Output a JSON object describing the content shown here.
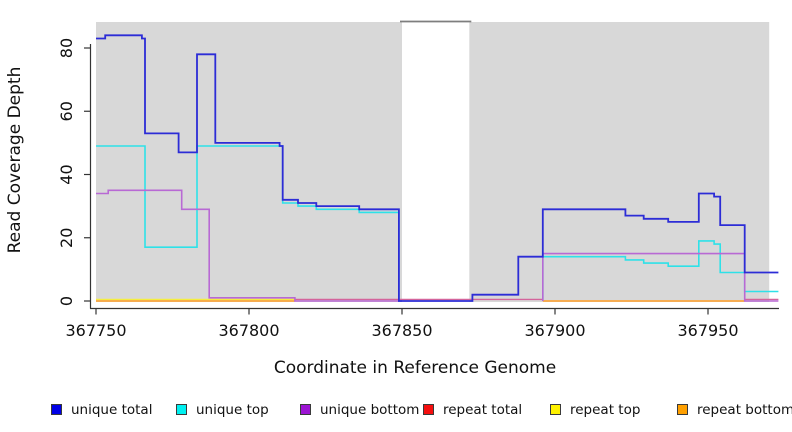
{
  "chart_data": {
    "type": "line",
    "subtype": "step-coverage",
    "title": "",
    "xlabel": "Coordinate in Reference Genome",
    "ylabel": "Read Coverage Depth",
    "xlim": [
      367750,
      367973
    ],
    "ylim": [
      0,
      88
    ],
    "grid": false,
    "legend_position": "bottom",
    "background_color": "#d8d8d8",
    "gap_top_line_color": "#7e7e7e",
    "axis_color": "#333333",
    "tick_text_color": "#111111",
    "x_axis": {
      "ticks": [
        367750,
        367800,
        367850,
        367900,
        367950
      ]
    },
    "y_axis": {
      "ticks": [
        0,
        20,
        40,
        60,
        80
      ]
    },
    "background_regions": [
      {
        "x": [
          367750,
          367850
        ]
      },
      {
        "x": [
          367872,
          367970
        ]
      }
    ],
    "gap_region": {
      "x": [
        367850,
        367872
      ]
    },
    "draw_order": [
      4,
      5,
      3,
      1,
      2,
      0
    ],
    "series": [
      {
        "name": "unique total",
        "legend_color": "#0000e6",
        "plot_color": "#2c2cd6",
        "line_width": 1.8,
        "segments": [
          [
            [
              367750,
              83
            ],
            [
              367753,
              84
            ],
            [
              367765,
              83
            ],
            [
              367766,
              53
            ],
            [
              367777,
              47
            ],
            [
              367783,
              78
            ],
            [
              367789,
              50
            ],
            [
              367810,
              49
            ],
            [
              367811,
              32
            ],
            [
              367816,
              31
            ],
            [
              367822,
              30
            ],
            [
              367836,
              29
            ],
            [
              367849,
              0
            ],
            [
              367873,
              0
            ],
            [
              367873,
              2
            ],
            [
              367888,
              14
            ],
            [
              367896,
              29
            ],
            [
              367923,
              27
            ],
            [
              367929,
              26
            ],
            [
              367937,
              25
            ],
            [
              367947,
              34
            ],
            [
              367952,
              33
            ],
            [
              367954,
              24
            ],
            [
              367962,
              9
            ],
            [
              367973,
              9
            ]
          ]
        ]
      },
      {
        "name": "unique top",
        "legend_color": "#00f0f0",
        "plot_color": "#2ee1e8",
        "line_width": 1.6,
        "segments": [
          [
            [
              367750,
              49
            ],
            [
              367766,
              17
            ],
            [
              367783,
              49
            ],
            [
              367811,
              31
            ],
            [
              367816,
              30
            ],
            [
              367822,
              29
            ],
            [
              367836,
              28
            ],
            [
              367849,
              0
            ],
            [
              367850,
              0
            ]
          ],
          [
            [
              367896,
              0
            ],
            [
              367896,
              14
            ],
            [
              367923,
              13
            ],
            [
              367929,
              12
            ],
            [
              367937,
              11
            ],
            [
              367947,
              19
            ],
            [
              367952,
              18
            ],
            [
              367954,
              9
            ],
            [
              367962,
              3
            ],
            [
              367973,
              3
            ]
          ]
        ]
      },
      {
        "name": "unique bottom",
        "legend_color": "#9c14d3",
        "plot_color": "#b869d4",
        "line_width": 1.6,
        "segments": [
          [
            [
              367750,
              34
            ],
            [
              367754,
              35
            ],
            [
              367778,
              29
            ],
            [
              367787,
              1
            ],
            [
              367815,
              0
            ],
            [
              367850,
              0
            ]
          ],
          [
            [
              367896,
              0
            ],
            [
              367896,
              15
            ],
            [
              367962,
              15
            ],
            [
              367962,
              0
            ],
            [
              367973,
              0
            ]
          ]
        ]
      },
      {
        "name": "repeat total",
        "legend_color": "#f50f0f",
        "plot_color": "#d4649b",
        "line_width": 1.4,
        "segments": [
          [
            [
              367815,
              0.5
            ],
            [
              367896,
              0.5
            ]
          ],
          [
            [
              367962,
              0.5
            ],
            [
              367973,
              0.5
            ]
          ]
        ]
      },
      {
        "name": "repeat top",
        "legend_color": "#fff200",
        "plot_color": "#f5ee3f",
        "line_width": 1.4,
        "segments": [
          [
            [
              367750,
              0.5
            ],
            [
              367815,
              0.5
            ]
          ]
        ]
      },
      {
        "name": "repeat bottom",
        "legend_color": "#ffa000",
        "plot_color": "#ff9d26",
        "line_width": 1.6,
        "segments": [
          [
            [
              367750,
              0
            ],
            [
              367815,
              0
            ]
          ],
          [
            [
              367896,
              0
            ],
            [
              367962,
              0
            ]
          ]
        ]
      }
    ]
  }
}
